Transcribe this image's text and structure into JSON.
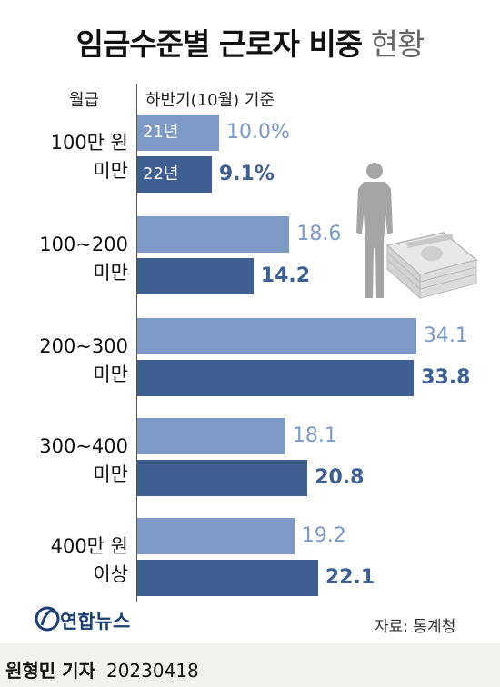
{
  "title": {
    "main": "임금수준별 근로자 비중",
    "suffix": "현황"
  },
  "header": {
    "left": "월급",
    "right": "하반기(10월) 기준"
  },
  "chart_data": {
    "type": "bar",
    "orientation": "horizontal",
    "categories": [
      [
        "100만 원",
        "미만"
      ],
      [
        "100~200",
        "미만"
      ],
      [
        "200~300",
        "미만"
      ],
      [
        "300~400",
        "미만"
      ],
      [
        "400만 원",
        "이상"
      ]
    ],
    "series": [
      {
        "name": "21년",
        "color": "#7d9ac7",
        "values": [
          10.0,
          18.6,
          34.1,
          18.1,
          19.2
        ],
        "labels": [
          "10.0%",
          "18.6",
          "34.1",
          "18.1",
          "19.2"
        ]
      },
      {
        "name": "22년",
        "color": "#3f5f92",
        "values": [
          9.1,
          14.2,
          33.8,
          20.8,
          22.1
        ],
        "labels": [
          "9.1%",
          "14.2",
          "33.8",
          "20.8",
          "22.1"
        ]
      }
    ],
    "unit": "%",
    "xlim": [
      0,
      36
    ]
  },
  "source": "자료: 통계청",
  "logo": {
    "text": "연합뉴스",
    "color": "#1b3f74",
    "icon": "yonhap-logo-icon"
  },
  "footer": {
    "name": "원형민 기자",
    "date": "20230418"
  },
  "illustration": {
    "icon": "businessman-with-money-icon"
  }
}
